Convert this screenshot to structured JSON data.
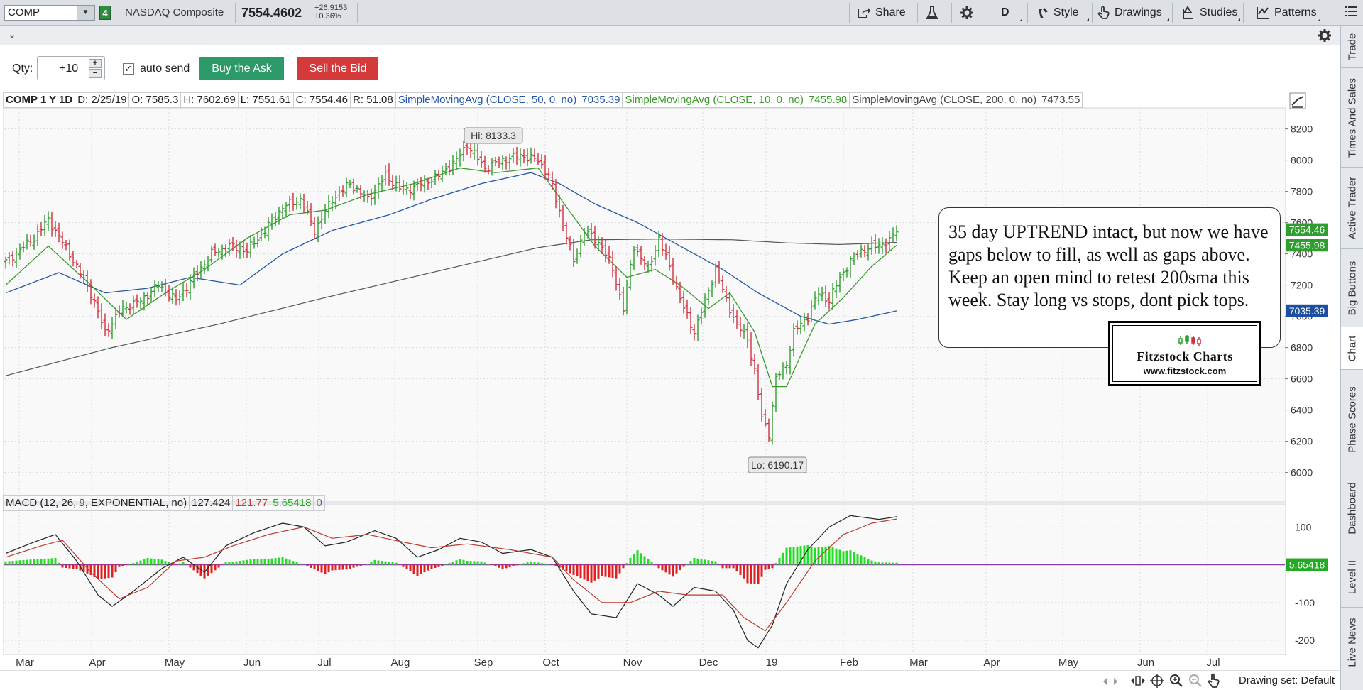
{
  "toolbar": {
    "symbol": "COMP",
    "link_group": "4",
    "description": "NASDAQ Composite",
    "last": "7554.4602",
    "net_change": "+26.9153",
    "pct_change": "+0.36%",
    "share": "Share",
    "aggregation": "D",
    "style": "Style",
    "drawings": "Drawings",
    "studies": "Studies",
    "patterns": "Patterns"
  },
  "order": {
    "qty_label": "Qty:",
    "qty_value": "+10",
    "auto_send": "auto send",
    "buy": "Buy the Ask",
    "sell": "Sell the Bid"
  },
  "info": {
    "symbol_period": "COMP 1 Y 1D",
    "date": "D: 2/25/19",
    "open": "O: 7585.3",
    "high": "H: 7602.69",
    "low": "L: 7551.61",
    "close": "C: 7554.46",
    "range": "R: 51.08",
    "sma50_label": "SimpleMovingAvg (CLOSE, 50, 0, no)",
    "sma50_value": "7035.39",
    "sma10_label": "SimpleMovingAvg (CLOSE, 10, 0, no)",
    "sma10_value": "7455.98",
    "sma200_label": "SimpleMovingAvg (CLOSE, 200, 0, no)",
    "sma200_value": "7473.55"
  },
  "macd": {
    "label": "MACD (12, 26, 9, EXPONENTIAL, no)",
    "value": "127.424",
    "avg": "121.77",
    "diff": "5.65418",
    "zero": "0"
  },
  "annotation": {
    "text": "35 day UPTREND intact, but now we have gaps below to fill, as well as gaps above.  Keep an open mind to retest 200sma this week.  Stay long vs stops, dont pick tops.",
    "logo_name": "Fitzstock Charts",
    "logo_url": "www.fitzstock.com"
  },
  "sidebar_tabs": [
    "Trade",
    "Times And Sales",
    "Active Trader",
    "Big Buttons",
    "Chart",
    "Phase Scores",
    "Dashboard",
    "Level II",
    "Live News"
  ],
  "bottom": {
    "drawing_set": "Drawing set: Default"
  },
  "colors": {
    "up": "#2e9e2e",
    "down": "#d2303f",
    "sma50": "#2457a8",
    "sma10": "#3a9a2a",
    "sma200": "#555555",
    "macd_line": "#222222",
    "macd_avg": "#c0392b",
    "hist_up": "#22dd22",
    "hist_down": "#e02020",
    "zero_line": "#8a3fa8"
  },
  "chart_data": {
    "type": "candlestick",
    "x_ticks": [
      "Mar",
      "Apr",
      "May",
      "Jun",
      "Jul",
      "Aug",
      "Sep",
      "Oct",
      "Nov",
      "Dec",
      "19",
      "Feb",
      "Mar",
      "Apr",
      "May",
      "Jun",
      "Jul"
    ],
    "y_ticks": [
      8200,
      8000,
      7800,
      7600,
      7400,
      7200,
      7000,
      6800,
      6600,
      6400,
      6200,
      6000
    ],
    "ylim": [
      5930,
      8330
    ],
    "high_label": "Hi: 8133.3",
    "low_label": "Lo: 6190.17",
    "price_badges": [
      {
        "value": "7554.46",
        "color": "#2e9e2e"
      },
      {
        "value": "7455.98",
        "color": "#2e9e2e"
      },
      {
        "value": "7035.39",
        "color": "#1d4fa0"
      }
    ],
    "close_anchors": [
      [
        0,
        7350
      ],
      [
        8,
        7500
      ],
      [
        12,
        7620
      ],
      [
        18,
        7400
      ],
      [
        24,
        7150
      ],
      [
        28,
        6900
      ],
      [
        33,
        7050
      ],
      [
        38,
        7100
      ],
      [
        43,
        7200
      ],
      [
        48,
        7100
      ],
      [
        53,
        7250
      ],
      [
        58,
        7400
      ],
      [
        63,
        7450
      ],
      [
        68,
        7420
      ],
      [
        73,
        7550
      ],
      [
        78,
        7700
      ],
      [
        83,
        7750
      ],
      [
        87,
        7550
      ],
      [
        92,
        7750
      ],
      [
        97,
        7850
      ],
      [
        102,
        7750
      ],
      [
        107,
        7900
      ],
      [
        112,
        7800
      ],
      [
        117,
        7850
      ],
      [
        122,
        7900
      ],
      [
        127,
        8000
      ],
      [
        130,
        8100
      ],
      [
        135,
        7950
      ],
      [
        140,
        8000
      ],
      [
        145,
        8030
      ],
      [
        150,
        8000
      ],
      [
        153,
        7900
      ],
      [
        157,
        7600
      ],
      [
        160,
        7350
      ],
      [
        163,
        7550
      ],
      [
        168,
        7450
      ],
      [
        171,
        7300
      ],
      [
        174,
        7050
      ],
      [
        177,
        7450
      ],
      [
        181,
        7300
      ],
      [
        184,
        7500
      ],
      [
        188,
        7250
      ],
      [
        191,
        7050
      ],
      [
        194,
        6900
      ],
      [
        197,
        7100
      ],
      [
        200,
        7300
      ],
      [
        203,
        7100
      ],
      [
        206,
        6950
      ],
      [
        209,
        6850
      ],
      [
        211,
        6650
      ],
      [
        213,
        6350
      ],
      [
        215,
        6250
      ],
      [
        217,
        6600
      ],
      [
        220,
        6700
      ],
      [
        222,
        6900
      ],
      [
        226,
        7000
      ],
      [
        229,
        7150
      ],
      [
        232,
        7100
      ],
      [
        235,
        7250
      ],
      [
        238,
        7350
      ],
      [
        241,
        7420
      ],
      [
        245,
        7450
      ],
      [
        249,
        7480
      ],
      [
        251,
        7554
      ]
    ],
    "sma10_anchors": [
      [
        0,
        7200
      ],
      [
        12,
        7450
      ],
      [
        24,
        7200
      ],
      [
        34,
        6980
      ],
      [
        45,
        7150
      ],
      [
        56,
        7300
      ],
      [
        68,
        7500
      ],
      [
        80,
        7650
      ],
      [
        90,
        7680
      ],
      [
        102,
        7780
      ],
      [
        115,
        7850
      ],
      [
        128,
        7950
      ],
      [
        138,
        7920
      ],
      [
        150,
        7950
      ],
      [
        158,
        7700
      ],
      [
        166,
        7450
      ],
      [
        175,
        7250
      ],
      [
        183,
        7300
      ],
      [
        190,
        7200
      ],
      [
        198,
        7050
      ],
      [
        204,
        7150
      ],
      [
        211,
        6900
      ],
      [
        216,
        6550
      ],
      [
        220,
        6550
      ],
      [
        228,
        6950
      ],
      [
        236,
        7120
      ],
      [
        244,
        7320
      ],
      [
        251,
        7455
      ]
    ],
    "sma50_anchors": [
      [
        0,
        7150
      ],
      [
        15,
        7280
      ],
      [
        28,
        7150
      ],
      [
        40,
        7180
      ],
      [
        52,
        7250
      ],
      [
        66,
        7200
      ],
      [
        78,
        7400
      ],
      [
        92,
        7550
      ],
      [
        108,
        7650
      ],
      [
        120,
        7750
      ],
      [
        134,
        7850
      ],
      [
        148,
        7920
      ],
      [
        156,
        7850
      ],
      [
        166,
        7720
      ],
      [
        178,
        7600
      ],
      [
        190,
        7450
      ],
      [
        202,
        7300
      ],
      [
        212,
        7150
      ],
      [
        224,
        7000
      ],
      [
        232,
        6950
      ],
      [
        240,
        6980
      ],
      [
        251,
        7035
      ]
    ],
    "sma200_anchors": [
      [
        0,
        6620
      ],
      [
        30,
        6800
      ],
      [
        60,
        6950
      ],
      [
        90,
        7120
      ],
      [
        120,
        7280
      ],
      [
        150,
        7440
      ],
      [
        165,
        7490
      ],
      [
        185,
        7495
      ],
      [
        205,
        7490
      ],
      [
        220,
        7470
      ],
      [
        235,
        7460
      ],
      [
        251,
        7473
      ]
    ],
    "macd_ylim": [
      -230,
      140
    ],
    "macd_ticks": [
      100,
      -100,
      -200
    ],
    "macd_line_anchors": [
      [
        0,
        30
      ],
      [
        8,
        60
      ],
      [
        14,
        80
      ],
      [
        20,
        10
      ],
      [
        26,
        -80
      ],
      [
        30,
        -110
      ],
      [
        36,
        -70
      ],
      [
        44,
        -10
      ],
      [
        50,
        20
      ],
      [
        56,
        -20
      ],
      [
        62,
        50
      ],
      [
        70,
        85
      ],
      [
        78,
        110
      ],
      [
        84,
        100
      ],
      [
        90,
        50
      ],
      [
        96,
        60
      ],
      [
        104,
        90
      ],
      [
        110,
        70
      ],
      [
        116,
        20
      ],
      [
        122,
        40
      ],
      [
        128,
        70
      ],
      [
        134,
        60
      ],
      [
        140,
        30
      ],
      [
        148,
        40
      ],
      [
        154,
        20
      ],
      [
        160,
        -70
      ],
      [
        165,
        -130
      ],
      [
        172,
        -140
      ],
      [
        178,
        -50
      ],
      [
        184,
        -80
      ],
      [
        188,
        -110
      ],
      [
        194,
        -60
      ],
      [
        200,
        -70
      ],
      [
        205,
        -120
      ],
      [
        209,
        -200
      ],
      [
        212,
        -220
      ],
      [
        216,
        -160
      ],
      [
        220,
        -50
      ],
      [
        226,
        40
      ],
      [
        232,
        100
      ],
      [
        238,
        130
      ],
      [
        246,
        120
      ],
      [
        251,
        127
      ]
    ],
    "macd_avg_anchors": [
      [
        0,
        20
      ],
      [
        10,
        50
      ],
      [
        16,
        65
      ],
      [
        24,
        -20
      ],
      [
        32,
        -90
      ],
      [
        40,
        -60
      ],
      [
        48,
        10
      ],
      [
        56,
        20
      ],
      [
        64,
        50
      ],
      [
        74,
        80
      ],
      [
        84,
        100
      ],
      [
        92,
        70
      ],
      [
        102,
        80
      ],
      [
        112,
        60
      ],
      [
        120,
        45
      ],
      [
        130,
        55
      ],
      [
        142,
        40
      ],
      [
        154,
        20
      ],
      [
        160,
        -40
      ],
      [
        168,
        -100
      ],
      [
        176,
        -100
      ],
      [
        184,
        -70
      ],
      [
        192,
        -80
      ],
      [
        202,
        -80
      ],
      [
        208,
        -140
      ],
      [
        214,
        -175
      ],
      [
        220,
        -100
      ],
      [
        228,
        10
      ],
      [
        236,
        80
      ],
      [
        244,
        110
      ],
      [
        251,
        121
      ]
    ]
  }
}
